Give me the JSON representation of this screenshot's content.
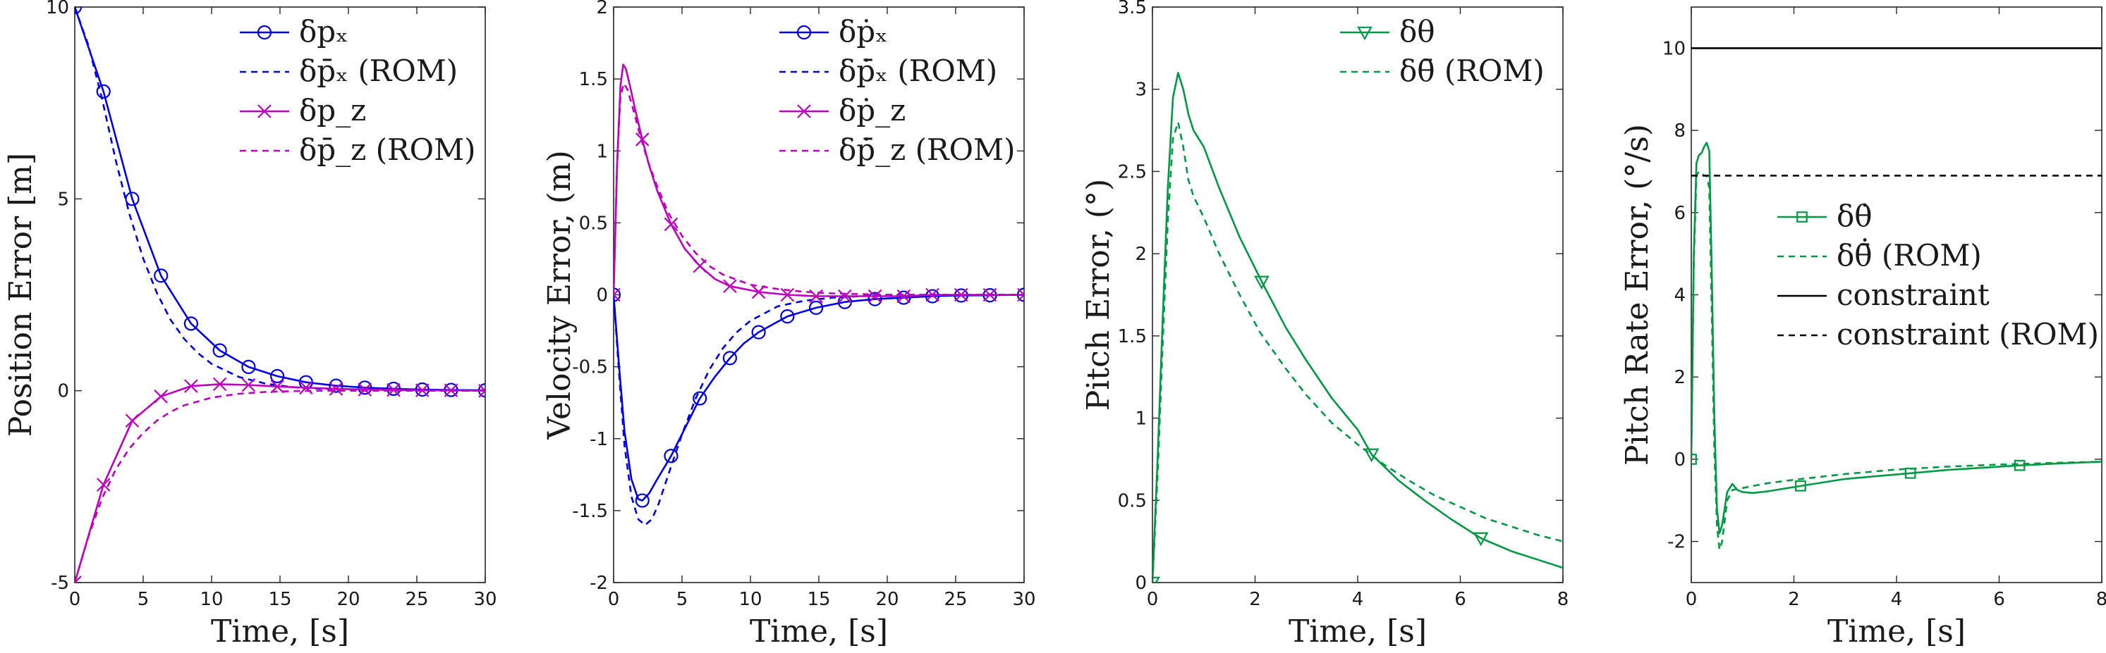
{
  "chart_data": [
    {
      "type": "line",
      "id": "position",
      "xlabel": "Time, [s]",
      "ylabel": "Position Error [m]",
      "xlim": [
        0,
        30
      ],
      "ylim": [
        -5,
        10
      ],
      "xticks": [
        0,
        5,
        10,
        15,
        20,
        25,
        30
      ],
      "xtick_labels": [
        "0",
        "5",
        "10",
        "15",
        "20",
        "25",
        "30"
      ],
      "yticks": [
        -5,
        0,
        5,
        10
      ],
      "ytick_labels": [
        "-5",
        "0",
        "5",
        "10"
      ],
      "legend": "top-right",
      "series": [
        {
          "name": "δp_x",
          "legend_label": "δpₓ",
          "color": "#0000e6",
          "style": "solid",
          "marker": "circle",
          "x": [
            0,
            2.1,
            4.2,
            6.3,
            8.5,
            10.6,
            12.7,
            14.8,
            16.9,
            19.1,
            21.2,
            23.3,
            25.4,
            27.5,
            30
          ],
          "y": [
            10,
            7.8,
            5.0,
            3.0,
            1.75,
            1.05,
            0.62,
            0.38,
            0.22,
            0.13,
            0.08,
            0.05,
            0.03,
            0.02,
            0.01
          ]
        },
        {
          "name": "δp̄_x (ROM)",
          "legend_label": "δp̄ₓ (ROM)",
          "color": "#0000e6",
          "style": "dashed",
          "marker": "none",
          "x": [
            0,
            1,
            2,
            3,
            4,
            5,
            6,
            7,
            8,
            9,
            10,
            12,
            14,
            16,
            18,
            20,
            24,
            30
          ],
          "y": [
            10,
            9.0,
            7.6,
            6.0,
            4.6,
            3.45,
            2.55,
            1.85,
            1.35,
            0.98,
            0.7,
            0.36,
            0.18,
            0.09,
            0.05,
            0.03,
            0.01,
            0.0
          ]
        },
        {
          "name": "δp_z",
          "legend_label": "δp_z",
          "color": "#c000c0",
          "style": "solid",
          "marker": "x",
          "x": [
            0,
            2.1,
            4.2,
            6.3,
            8.5,
            10.6,
            12.7,
            14.8,
            16.9,
            19.1,
            21.2,
            23.3,
            25.4,
            27.5,
            30
          ],
          "y": [
            -5,
            -2.45,
            -0.78,
            -0.15,
            0.12,
            0.17,
            0.15,
            0.11,
            0.08,
            0.05,
            0.03,
            0.02,
            0.01,
            0.01,
            0.0
          ]
        },
        {
          "name": "δp̄_z (ROM)",
          "legend_label": "δp̄_z (ROM)",
          "color": "#c000c0",
          "style": "dashed",
          "marker": "none",
          "x": [
            0,
            1,
            2,
            3,
            4,
            5,
            6,
            7,
            8,
            10,
            12,
            14,
            16,
            18,
            20,
            24,
            30
          ],
          "y": [
            -5,
            -3.8,
            -2.8,
            -2.05,
            -1.5,
            -1.1,
            -0.78,
            -0.55,
            -0.38,
            -0.18,
            -0.08,
            -0.03,
            -0.01,
            0.0,
            0.0,
            0.0,
            0.0
          ]
        }
      ]
    },
    {
      "type": "line",
      "id": "velocity",
      "xlabel": "Time, [s]",
      "ylabel": "Velocity Error, (m)",
      "xlim": [
        0,
        30
      ],
      "ylim": [
        -2,
        2
      ],
      "xticks": [
        0,
        5,
        10,
        15,
        20,
        25,
        30
      ],
      "xtick_labels": [
        "0",
        "5",
        "10",
        "15",
        "20",
        "25",
        "30"
      ],
      "yticks": [
        -2,
        -1.5,
        -1,
        -0.5,
        0,
        0.5,
        1,
        1.5,
        2
      ],
      "ytick_labels": [
        "-2",
        "-1.5",
        "-1",
        "-0.5",
        "0",
        "0.5",
        "1",
        "1.5",
        "2"
      ],
      "legend": "top-right",
      "series": [
        {
          "name": "δṗ_x",
          "legend_label": "δṗₓ",
          "color": "#0000e6",
          "style": "solid",
          "marker": "circle",
          "x": [
            0,
            0.4,
            0.8,
            1.3,
            1.8,
            2.1,
            2.6,
            3.2,
            4.2,
            5.2,
            6.3,
            7.4,
            8.5,
            9.5,
            10.6,
            12.7,
            14.8,
            16.9,
            19.1,
            21.2,
            23.3,
            25.4,
            27.5,
            30
          ],
          "y": [
            0,
            -0.5,
            -0.95,
            -1.28,
            -1.42,
            -1.43,
            -1.38,
            -1.28,
            -1.12,
            -0.93,
            -0.72,
            -0.57,
            -0.44,
            -0.34,
            -0.26,
            -0.15,
            -0.09,
            -0.05,
            -0.03,
            -0.02,
            -0.01,
            -0.005,
            -0.003,
            0.0
          ]
        },
        {
          "name": "δṗ̄_x (ROM)",
          "legend_label": "δṗ̄ₓ (ROM)",
          "color": "#0000e6",
          "style": "dashed",
          "marker": "none",
          "x": [
            0,
            0.4,
            0.8,
            1.3,
            1.8,
            2.3,
            2.8,
            3.3,
            4.0,
            5.0,
            6.0,
            7.0,
            8.0,
            9.0,
            10.0,
            12.0,
            14.0,
            16.0,
            18.0,
            20.0,
            24.0,
            30.0
          ],
          "y": [
            0,
            -0.55,
            -1.05,
            -1.4,
            -1.56,
            -1.6,
            -1.56,
            -1.45,
            -1.25,
            -0.97,
            -0.72,
            -0.52,
            -0.37,
            -0.26,
            -0.18,
            -0.08,
            -0.04,
            -0.02,
            -0.01,
            0.0,
            0.0,
            0.0
          ]
        },
        {
          "name": "δṗ_z",
          "legend_label": "δṗ_z",
          "color": "#c000c0",
          "style": "solid",
          "marker": "x",
          "x": [
            0,
            0.25,
            0.5,
            0.7,
            0.9,
            1.2,
            1.6,
            2.1,
            2.6,
            3.2,
            4.2,
            5.2,
            6.3,
            7.4,
            8.5,
            10.6,
            12.7,
            14.8,
            16.9,
            19.1,
            21.2,
            23.3,
            25.4,
            27.5,
            30
          ],
          "y": [
            0,
            0.9,
            1.45,
            1.6,
            1.57,
            1.45,
            1.28,
            1.08,
            0.9,
            0.72,
            0.49,
            0.32,
            0.2,
            0.11,
            0.06,
            0.02,
            0.0,
            -0.01,
            -0.01,
            -0.01,
            -0.01,
            0.0,
            0.0,
            0.0,
            0.0
          ]
        },
        {
          "name": "δṗ̄_z (ROM)",
          "legend_label": "δṗ̄_z (ROM)",
          "color": "#c000c0",
          "style": "dashed",
          "marker": "none",
          "x": [
            0,
            0.25,
            0.5,
            0.75,
            1.0,
            1.4,
            1.9,
            2.5,
            3.2,
            4.0,
            5.0,
            6.0,
            7.0,
            8.0,
            10.0,
            12.0,
            14.0,
            16.0,
            20.0,
            24.0,
            30.0
          ],
          "y": [
            0,
            0.9,
            1.38,
            1.47,
            1.43,
            1.3,
            1.12,
            0.93,
            0.75,
            0.57,
            0.41,
            0.29,
            0.2,
            0.14,
            0.07,
            0.04,
            0.02,
            0.01,
            0.0,
            0.0,
            0.0
          ]
        }
      ]
    },
    {
      "type": "line",
      "id": "pitch",
      "xlabel": "Time, [s]",
      "ylabel": "Pitch Error, (°)",
      "xlim": [
        0,
        8
      ],
      "ylim": [
        0,
        3.5
      ],
      "xticks": [
        0,
        2,
        4,
        6,
        8
      ],
      "xtick_labels": [
        "0",
        "2",
        "4",
        "6",
        "8"
      ],
      "yticks": [
        0,
        0.5,
        1,
        1.5,
        2,
        2.5,
        3,
        3.5
      ],
      "ytick_labels": [
        "0",
        "0.5",
        "1",
        "1.5",
        "2",
        "2.5",
        "3",
        "3.5"
      ],
      "legend": "top-right",
      "series": [
        {
          "name": "δθ",
          "legend_label": "δθ",
          "color": "#009944",
          "style": "solid",
          "marker": "triangle-down",
          "x": [
            0,
            0.1,
            0.2,
            0.3,
            0.4,
            0.5,
            0.6,
            0.7,
            0.8,
            1.0,
            1.3,
            1.7,
            2.13,
            2.6,
            3.0,
            3.5,
            4.0,
            4.27,
            4.8,
            5.3,
            5.8,
            6.4,
            7.0,
            7.5,
            8.0
          ],
          "y": [
            0,
            0.75,
            1.6,
            2.4,
            2.95,
            3.1,
            3.0,
            2.85,
            2.75,
            2.65,
            2.4,
            2.1,
            1.83,
            1.55,
            1.35,
            1.12,
            0.93,
            0.78,
            0.62,
            0.5,
            0.39,
            0.27,
            0.19,
            0.14,
            0.09
          ]
        },
        {
          "name": "δθ̄ (ROM)",
          "legend_label": "δθ̄ (ROM)",
          "color": "#009944",
          "style": "dashed",
          "marker": "none",
          "x": [
            0,
            0.1,
            0.2,
            0.3,
            0.4,
            0.5,
            0.6,
            0.7,
            0.8,
            1.0,
            1.3,
            1.7,
            2.1,
            2.6,
            3.0,
            3.5,
            4.0,
            4.5,
            5.0,
            5.5,
            6.0,
            6.5,
            7.0,
            7.5,
            8.0
          ],
          "y": [
            0,
            0.65,
            1.45,
            2.2,
            2.7,
            2.8,
            2.65,
            2.45,
            2.35,
            2.22,
            2.0,
            1.75,
            1.52,
            1.3,
            1.14,
            0.97,
            0.84,
            0.72,
            0.62,
            0.53,
            0.46,
            0.39,
            0.34,
            0.29,
            0.25
          ]
        }
      ]
    },
    {
      "type": "line",
      "id": "pitch-rate",
      "xlabel": "Time, [s]",
      "ylabel": "Pitch Rate Error, (°/s)",
      "xlim": [
        0,
        8
      ],
      "ylim": [
        -3,
        11
      ],
      "xticks": [
        0,
        2,
        4,
        6,
        8
      ],
      "xtick_labels": [
        "0",
        "2",
        "4",
        "6",
        "8"
      ],
      "yticks": [
        -2,
        0,
        2,
        4,
        6,
        8,
        10
      ],
      "ytick_labels": [
        "-2",
        "0",
        "2",
        "4",
        "6",
        "8",
        "10"
      ],
      "legend": "middle-right",
      "series": [
        {
          "name": "δθ̇",
          "legend_label": "δθ̇",
          "color": "#009944",
          "style": "solid",
          "marker": "square",
          "x": [
            0,
            0.05,
            0.1,
            0.15,
            0.2,
            0.25,
            0.3,
            0.35,
            0.4,
            0.45,
            0.5,
            0.55,
            0.6,
            0.65,
            0.7,
            0.8,
            0.9,
            1.0,
            1.2,
            1.5,
            2.13,
            3.0,
            4.27,
            5.0,
            6.4,
            7.2,
            8.0
          ],
          "y": [
            0,
            5.0,
            7.2,
            7.4,
            7.45,
            7.6,
            7.7,
            7.5,
            4.5,
            1.0,
            -1.2,
            -1.8,
            -1.6,
            -1.2,
            -0.8,
            -0.6,
            -0.75,
            -0.8,
            -0.82,
            -0.78,
            -0.65,
            -0.48,
            -0.34,
            -0.26,
            -0.15,
            -0.1,
            -0.06
          ]
        },
        {
          "name": "δθ̄̇ (ROM)",
          "legend_label": "δθ̄̇ (ROM)",
          "color": "#009944",
          "style": "dashed",
          "marker": "none",
          "x": [
            0,
            0.05,
            0.1,
            0.15,
            0.2,
            0.25,
            0.3,
            0.35,
            0.4,
            0.45,
            0.5,
            0.55,
            0.6,
            0.65,
            0.7,
            0.8,
            0.9,
            1.0,
            1.2,
            1.5,
            2.0,
            3.0,
            4.0,
            5.0,
            6.0,
            7.0,
            8.0
          ],
          "y": [
            0,
            4.8,
            6.9,
            7.0,
            6.95,
            6.9,
            6.9,
            6.6,
            3.5,
            0.2,
            -1.6,
            -2.2,
            -2.0,
            -1.5,
            -1.0,
            -0.75,
            -0.72,
            -0.7,
            -0.65,
            -0.58,
            -0.5,
            -0.36,
            -0.25,
            -0.18,
            -0.13,
            -0.09,
            -0.06
          ]
        },
        {
          "name": "constraint",
          "legend_label": "constraint",
          "color": "#000000",
          "style": "solid",
          "marker": "none",
          "x": [
            0,
            8
          ],
          "y": [
            10,
            10
          ]
        },
        {
          "name": "constraint (ROM)",
          "legend_label": "constraint (ROM)",
          "color": "#000000",
          "style": "dashed",
          "marker": "none",
          "x": [
            0,
            8
          ],
          "y": [
            6.9,
            6.9
          ]
        }
      ]
    }
  ]
}
